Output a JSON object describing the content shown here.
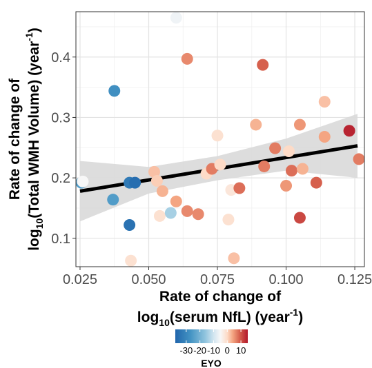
{
  "chart_data": {
    "type": "scatter",
    "x_title_line1": "Rate of change of",
    "x_title_line2_pre": "log",
    "x_title_line2_sub": "10",
    "x_title_line2_mid": "(serum NfL) (year",
    "x_title_line2_sup": "-1",
    "x_title_line2_post": ")",
    "y_title_line1": "Rate of change of",
    "y_title_line2_pre": "log",
    "y_title_line2_sub": "10",
    "y_title_line2_mid": "(Total WMH Volume) (year",
    "y_title_line2_sup": "-1",
    "y_title_line2_post": ")",
    "xlim": [
      0.0235,
      0.1285
    ],
    "ylim": [
      0.053,
      0.475
    ],
    "x_ticks": [
      0.025,
      0.05,
      0.075,
      0.1,
      0.125
    ],
    "x_tick_labels": [
      "0.025",
      "0.050",
      "0.075",
      "0.100",
      "0.125"
    ],
    "y_ticks": [
      0.1,
      0.2,
      0.3,
      0.4
    ],
    "y_tick_labels": [
      "0.1",
      "0.2",
      "0.3",
      "0.4"
    ],
    "grid": true,
    "color_scale": {
      "title": "EYO",
      "min": -38,
      "max": 15,
      "ticks": [
        -30,
        -20,
        -10,
        0,
        10
      ],
      "tick_labels": [
        "-30",
        "-20",
        "-10",
        "0",
        "10"
      ],
      "stops": [
        {
          "v": -38,
          "color": "#2166ac"
        },
        {
          "v": -27,
          "color": "#4393c3"
        },
        {
          "v": -16,
          "color": "#92c5de"
        },
        {
          "v": -10,
          "color": "#d1e5f0"
        },
        {
          "v": -5,
          "color": "#f7f7f7"
        },
        {
          "v": 0,
          "color": "#fddbc7"
        },
        {
          "v": 4,
          "color": "#f4a582"
        },
        {
          "v": 9,
          "color": "#d6604d"
        },
        {
          "v": 15,
          "color": "#b2182b"
        }
      ],
      "legend_placement": "bottom"
    },
    "regression": {
      "x": [
        0.025,
        0.126
      ],
      "y": [
        0.178,
        0.253
      ]
    },
    "confidence_band": {
      "x": [
        0.025,
        0.05,
        0.075,
        0.1,
        0.126
      ],
      "upper": [
        0.228,
        0.218,
        0.236,
        0.265,
        0.306
      ],
      "lower": [
        0.128,
        0.174,
        0.196,
        0.212,
        0.2
      ]
    },
    "points": [
      {
        "x": 0.0255,
        "y": 0.192,
        "eyo": -25
      },
      {
        "x": 0.026,
        "y": 0.194,
        "eyo": -5
      },
      {
        "x": 0.037,
        "y": 0.164,
        "eyo": -25
      },
      {
        "x": 0.0375,
        "y": 0.344,
        "eyo": -28
      },
      {
        "x": 0.043,
        "y": 0.192,
        "eyo": -33
      },
      {
        "x": 0.043,
        "y": 0.122,
        "eyo": -35
      },
      {
        "x": 0.0435,
        "y": 0.063,
        "eyo": -1
      },
      {
        "x": 0.045,
        "y": 0.192,
        "eyo": -36
      },
      {
        "x": 0.052,
        "y": 0.21,
        "eyo": 2
      },
      {
        "x": 0.053,
        "y": 0.195,
        "eyo": 1
      },
      {
        "x": 0.054,
        "y": 0.137,
        "eyo": -1
      },
      {
        "x": 0.055,
        "y": 0.178,
        "eyo": 3
      },
      {
        "x": 0.058,
        "y": 0.142,
        "eyo": -14
      },
      {
        "x": 0.06,
        "y": 0.465,
        "eyo": -6
      },
      {
        "x": 0.06,
        "y": 0.161,
        "eyo": 4
      },
      {
        "x": 0.064,
        "y": 0.397,
        "eyo": 6
      },
      {
        "x": 0.064,
        "y": 0.145,
        "eyo": 6
      },
      {
        "x": 0.068,
        "y": 0.14,
        "eyo": 6
      },
      {
        "x": 0.071,
        "y": 0.207,
        "eyo": 0
      },
      {
        "x": 0.073,
        "y": 0.215,
        "eyo": 7
      },
      {
        "x": 0.075,
        "y": 0.27,
        "eyo": -1
      },
      {
        "x": 0.076,
        "y": 0.222,
        "eyo": 0
      },
      {
        "x": 0.079,
        "y": 0.131,
        "eyo": -1
      },
      {
        "x": 0.08,
        "y": 0.18,
        "eyo": -2
      },
      {
        "x": 0.081,
        "y": 0.067,
        "eyo": 2
      },
      {
        "x": 0.083,
        "y": 0.183,
        "eyo": 8
      },
      {
        "x": 0.089,
        "y": 0.288,
        "eyo": 3
      },
      {
        "x": 0.0915,
        "y": 0.387,
        "eyo": 9
      },
      {
        "x": 0.092,
        "y": 0.219,
        "eyo": 7
      },
      {
        "x": 0.096,
        "y": 0.249,
        "eyo": 7
      },
      {
        "x": 0.1,
        "y": 0.187,
        "eyo": 5
      },
      {
        "x": 0.101,
        "y": 0.244,
        "eyo": 0
      },
      {
        "x": 0.102,
        "y": 0.212,
        "eyo": 8
      },
      {
        "x": 0.105,
        "y": 0.288,
        "eyo": 5
      },
      {
        "x": 0.105,
        "y": 0.134,
        "eyo": 11
      },
      {
        "x": 0.106,
        "y": 0.215,
        "eyo": 3
      },
      {
        "x": 0.111,
        "y": 0.192,
        "eyo": 9
      },
      {
        "x": 0.114,
        "y": 0.326,
        "eyo": 2
      },
      {
        "x": 0.114,
        "y": 0.268,
        "eyo": 4
      },
      {
        "x": 0.123,
        "y": 0.278,
        "eyo": 14
      },
      {
        "x": 0.1265,
        "y": 0.231,
        "eyo": 7
      }
    ]
  }
}
